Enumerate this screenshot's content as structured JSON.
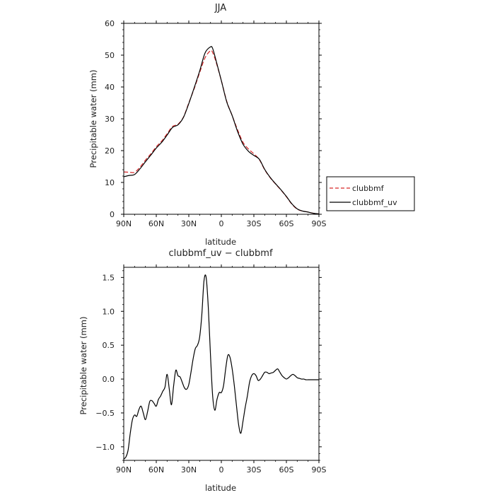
{
  "chart_data": [
    {
      "type": "line",
      "title": "JJA",
      "xlabel": "latitude",
      "ylabel": "Precipitable water (mm)",
      "xlim": [
        90,
        -90
      ],
      "ylim": [
        0,
        60
      ],
      "x_ticks": [
        90,
        60,
        30,
        0,
        -30,
        -60,
        -90
      ],
      "x_tick_labels": [
        "90N",
        "60N",
        "30N",
        "0",
        "30S",
        "60S",
        "90S"
      ],
      "y_ticks": [
        0,
        10,
        20,
        30,
        40,
        50,
        60
      ],
      "y_tick_labels": [
        "0",
        "10",
        "20",
        "30",
        "40",
        "50",
        "60"
      ],
      "legend_position": "right",
      "series": [
        {
          "name": "clubbmf",
          "color": "#d62728",
          "dash": "dashed",
          "x": [
            90,
            85,
            80,
            75,
            70,
            65,
            60,
            55,
            50,
            45,
            40,
            35,
            30,
            25,
            20,
            15,
            10,
            8,
            5,
            0,
            -5,
            -10,
            -15,
            -20,
            -25,
            -30,
            -35,
            -40,
            -45,
            -50,
            -55,
            -60,
            -65,
            -70,
            -75,
            -80,
            -85,
            -90
          ],
          "values": [
            13.3,
            13.2,
            13.2,
            14.8,
            17.0,
            19.0,
            21.2,
            23.0,
            25.3,
            27.6,
            28.3,
            30.5,
            35.0,
            39.5,
            44.5,
            49.2,
            51.4,
            50.8,
            48.0,
            42.0,
            35.5,
            31.0,
            26.5,
            22.6,
            20.5,
            19.0,
            17.2,
            14.0,
            11.5,
            9.5,
            7.6,
            5.5,
            3.2,
            1.6,
            1.0,
            0.7,
            0.3,
            0.1
          ]
        },
        {
          "name": "clubbmf_uv",
          "color": "#000000",
          "dash": "solid",
          "x": [
            90,
            85,
            80,
            75,
            70,
            65,
            60,
            55,
            50,
            45,
            40,
            35,
            30,
            25,
            20,
            15,
            10,
            8,
            5,
            0,
            -5,
            -10,
            -15,
            -20,
            -25,
            -30,
            -35,
            -40,
            -45,
            -50,
            -55,
            -60,
            -65,
            -70,
            -75,
            -80,
            -85,
            -90
          ],
          "values": [
            11.8,
            12.2,
            12.5,
            14.3,
            16.5,
            18.6,
            20.8,
            22.6,
            24.9,
            27.3,
            28.1,
            30.4,
            34.8,
            39.8,
            45.0,
            50.7,
            52.6,
            52.1,
            48.5,
            42.0,
            35.3,
            31.0,
            26.0,
            22.0,
            19.8,
            18.5,
            17.3,
            14.1,
            11.6,
            9.6,
            7.7,
            5.6,
            3.3,
            1.7,
            1.0,
            0.7,
            0.3,
            0.1
          ]
        }
      ]
    },
    {
      "type": "line",
      "title": "clubbmf_uv − clubbmf",
      "xlabel": "latitude",
      "ylabel": "Precipitable water (mm)",
      "xlim": [
        90,
        -90
      ],
      "ylim": [
        -1.2,
        1.65
      ],
      "x_ticks": [
        90,
        60,
        30,
        0,
        -30,
        -60,
        -90
      ],
      "x_tick_labels": [
        "90N",
        "60N",
        "30N",
        "0",
        "30S",
        "60S",
        "90S"
      ],
      "y_ticks": [
        -1.0,
        -0.5,
        0.0,
        0.5,
        1.0,
        1.5
      ],
      "y_tick_labels": [
        "−1.0",
        "−0.5",
        "0.0",
        "0.5",
        "1.0",
        "1.5"
      ],
      "series": [
        {
          "name": "",
          "color": "#000000",
          "dash": "solid",
          "x": [
            90,
            88,
            86,
            84,
            82,
            80,
            78,
            76,
            74,
            72,
            70,
            68,
            66,
            64,
            62,
            60,
            58,
            56,
            54,
            52,
            50,
            48,
            46,
            44,
            42,
            40,
            38,
            36,
            34,
            32,
            30,
            28,
            26,
            24,
            22,
            20,
            18,
            16,
            14,
            12,
            10,
            8,
            6,
            4,
            2,
            0,
            -2,
            -4,
            -6,
            -8,
            -10,
            -12,
            -14,
            -16,
            -18,
            -20,
            -22,
            -24,
            -26,
            -28,
            -30,
            -32,
            -34,
            -36,
            -38,
            -40,
            -42,
            -44,
            -46,
            -48,
            -50,
            -52,
            -54,
            -56,
            -58,
            -60,
            -62,
            -64,
            -66,
            -68,
            -70,
            -72,
            -74,
            -76,
            -78,
            -80,
            -82,
            -84,
            -86,
            -88,
            -90
          ],
          "values": [
            -1.18,
            -1.15,
            -1.05,
            -0.8,
            -0.6,
            -0.53,
            -0.55,
            -0.45,
            -0.4,
            -0.5,
            -0.6,
            -0.48,
            -0.33,
            -0.32,
            -0.36,
            -0.4,
            -0.3,
            -0.25,
            -0.18,
            -0.12,
            0.07,
            -0.15,
            -0.38,
            -0.1,
            0.13,
            0.05,
            0.03,
            -0.05,
            -0.13,
            -0.15,
            -0.08,
            0.1,
            0.3,
            0.45,
            0.5,
            0.62,
            0.95,
            1.45,
            1.5,
            1.05,
            0.35,
            -0.25,
            -0.46,
            -0.3,
            -0.2,
            -0.2,
            -0.1,
            0.15,
            0.35,
            0.32,
            0.15,
            -0.1,
            -0.4,
            -0.68,
            -0.8,
            -0.62,
            -0.42,
            -0.25,
            -0.05,
            0.05,
            0.08,
            0.05,
            -0.02,
            0.0,
            0.05,
            0.1,
            0.1,
            0.08,
            0.09,
            0.1,
            0.13,
            0.15,
            0.1,
            0.05,
            0.02,
            0.0,
            0.02,
            0.05,
            0.07,
            0.05,
            0.02,
            0.01,
            0.0,
            0.0,
            -0.01,
            -0.01,
            -0.01,
            -0.01,
            -0.01,
            -0.01,
            -0.01
          ]
        }
      ]
    }
  ]
}
